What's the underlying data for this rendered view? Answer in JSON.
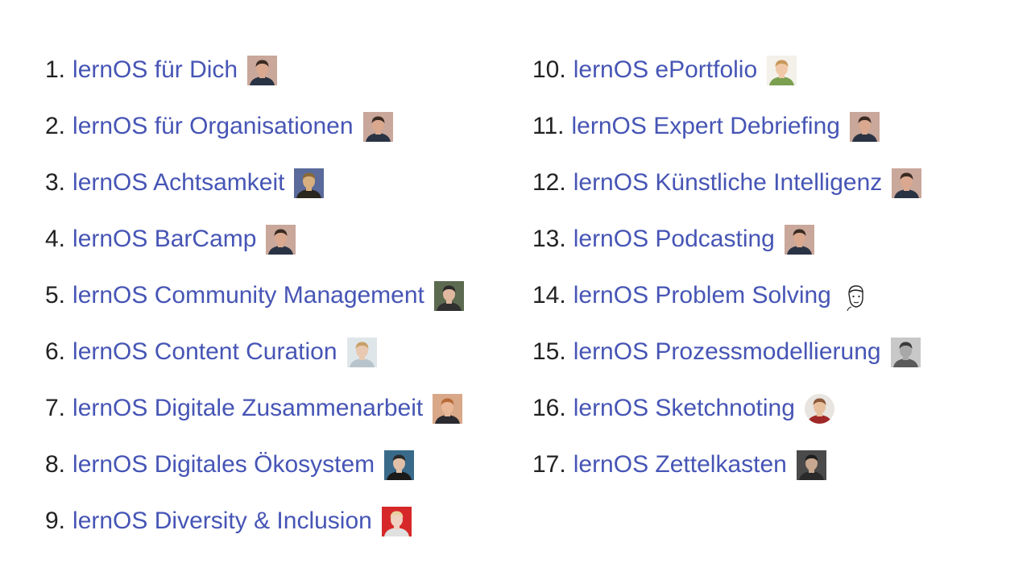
{
  "left_column": [
    {
      "number": "1.",
      "label": "lernOS für Dich",
      "avatar": "person-avatar-icon",
      "colors": {
        "bg": "#c9a79b",
        "hair": "#3a2a22",
        "skin": "#d9a88e",
        "shirt": "#2a3344"
      }
    },
    {
      "number": "2.",
      "label": "lernOS für Organisationen",
      "avatar": "person-avatar-icon",
      "colors": {
        "bg": "#c9a79b",
        "hair": "#3a2a22",
        "skin": "#d9a88e",
        "shirt": "#2a3344"
      }
    },
    {
      "number": "3.",
      "label": "lernOS Achtsamkeit",
      "avatar": "person-avatar-icon",
      "colors": {
        "bg": "#5a6a9a",
        "hair": "#8a6a3a",
        "skin": "#d8b080",
        "shirt": "#2a2620"
      }
    },
    {
      "number": "4.",
      "label": "lernOS BarCamp",
      "avatar": "person-avatar-icon",
      "colors": {
        "bg": "#c9a79b",
        "hair": "#3a2a22",
        "skin": "#d9a88e",
        "shirt": "#2a3344"
      }
    },
    {
      "number": "5.",
      "label": "lernOS Community Management",
      "avatar": "person-avatar-icon",
      "colors": {
        "bg": "#5c6a50",
        "hair": "#2a2a2a",
        "skin": "#e0b8a0",
        "shirt": "#303030"
      }
    },
    {
      "number": "6.",
      "label": "lernOS Content Curation",
      "avatar": "person-avatar-icon",
      "colors": {
        "bg": "#dfe6ea",
        "hair": "#c8a068",
        "skin": "#e8c8b0",
        "shirt": "#b8c4cc"
      }
    },
    {
      "number": "7.",
      "label": "lernOS Digitale Zusammenarbeit",
      "avatar": "person-avatar-icon",
      "colors": {
        "bg": "#d8a888",
        "hair": "#b86a38",
        "skin": "#e8b898",
        "shirt": "#2a2a30"
      }
    },
    {
      "number": "8.",
      "label": "lernOS Digitales Ökosystem",
      "avatar": "person-avatar-icon",
      "colors": {
        "bg": "#3a6a8a",
        "hair": "#2a2a2a",
        "skin": "#e0c0a8",
        "shirt": "#1a1a1a"
      }
    },
    {
      "number": "9.",
      "label": "lernOS Diversity & Inclusion",
      "avatar": "person-avatar-icon",
      "colors": {
        "bg": "#d62828",
        "hair": "#e8d0a0",
        "skin": "#f0d0c0",
        "shirt": "#e0e0e0"
      }
    }
  ],
  "right_column": [
    {
      "number": "10.",
      "label": "lernOS ePortfolio",
      "avatar": "person-avatar-icon",
      "round": false,
      "colors": {
        "bg": "#f4f0ea",
        "hair": "#c89858",
        "skin": "#f0c8a8",
        "shirt": "#7aa050"
      }
    },
    {
      "number": "11.",
      "label": "lernOS Expert Debriefing",
      "avatar": "person-avatar-icon",
      "round": false,
      "colors": {
        "bg": "#c9a79b",
        "hair": "#3a2a22",
        "skin": "#d9a88e",
        "shirt": "#2a3344"
      }
    },
    {
      "number": "12.",
      "label": "lernOS Künstliche Intelligenz",
      "avatar": "person-avatar-icon",
      "round": false,
      "colors": {
        "bg": "#c9a79b",
        "hair": "#3a2a22",
        "skin": "#d9a88e",
        "shirt": "#2a3344"
      }
    },
    {
      "number": "13.",
      "label": "lernOS Podcasting",
      "avatar": "person-avatar-icon",
      "round": false,
      "colors": {
        "bg": "#c9a79b",
        "hair": "#3a2a22",
        "skin": "#d9a88e",
        "shirt": "#2a3344"
      }
    },
    {
      "number": "14.",
      "label": "lernOS Problem Solving",
      "avatar": "sketched-face-icon",
      "round": false,
      "colors": {
        "bg": "#ffffff",
        "hair": "#222222",
        "skin": "#ffffff",
        "shirt": "#ffffff"
      }
    },
    {
      "number": "15.",
      "label": "lernOS Prozessmodellierung",
      "avatar": "person-avatar-icon",
      "round": false,
      "colors": {
        "bg": "#c8c8c8",
        "hair": "#3a3a3a",
        "skin": "#a8a8a8",
        "shirt": "#5a5a5a"
      }
    },
    {
      "number": "16.",
      "label": "lernOS Sketchnoting",
      "avatar": "person-avatar-icon",
      "round": true,
      "colors": {
        "bg": "#e8e4e0",
        "hair": "#8a5a3a",
        "skin": "#e8c0a0",
        "shirt": "#a02828"
      }
    },
    {
      "number": "17.",
      "label": "lernOS Zettelkasten",
      "avatar": "person-avatar-icon",
      "round": false,
      "colors": {
        "bg": "#4a4a4a",
        "hair": "#1e1e1e",
        "skin": "#c8a890",
        "shirt": "#2a2a2a"
      }
    }
  ]
}
